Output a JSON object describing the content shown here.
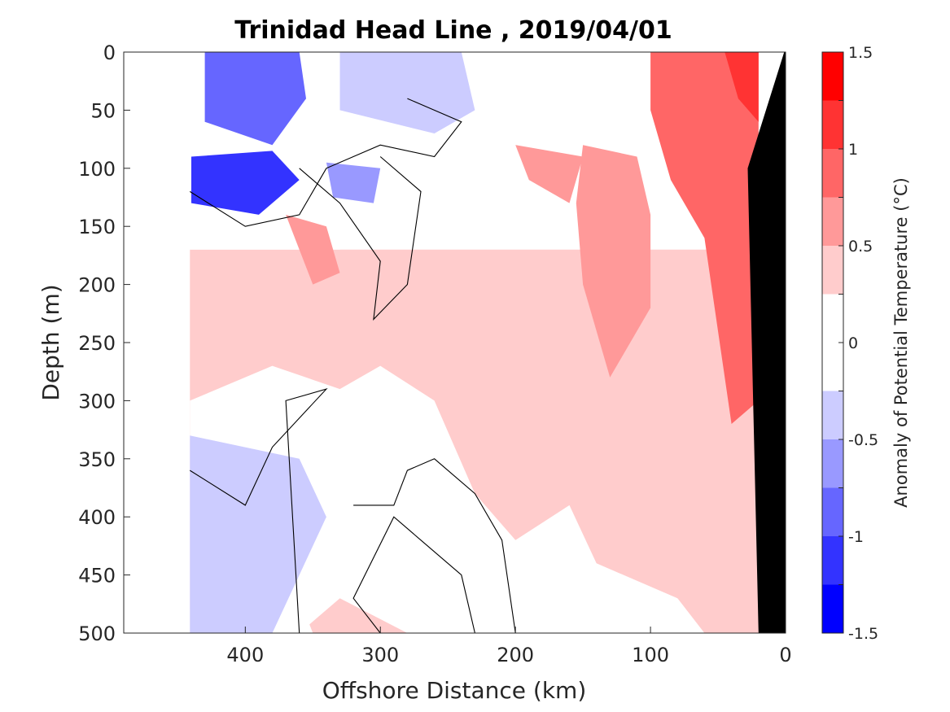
{
  "chart_data": {
    "type": "contourf",
    "title": "Trinidad Head Line , 2019/04/01",
    "xlabel": "Offshore Distance (km)",
    "ylabel": "Depth (m)",
    "x_reversed": true,
    "y_reversed": true,
    "xlim": [
      490,
      0
    ],
    "ylim": [
      0,
      500
    ],
    "xticks": [
      400,
      300,
      200,
      100,
      0
    ],
    "yticks": [
      0,
      50,
      100,
      150,
      200,
      250,
      300,
      350,
      400,
      450,
      500
    ],
    "data_extent": {
      "x_km": [
        441,
        20
      ],
      "depth_m": [
        0,
        500
      ]
    },
    "colorbar": {
      "label": "Anomaly of Potential Temperature (°C)",
      "ticks": [
        "1.5",
        "1",
        "0.5",
        "0",
        "-0.5",
        "-1",
        "-1.5"
      ],
      "range": [
        -1.5,
        1.5
      ],
      "levels": [
        {
          "min": 1.25,
          "max": 1.5,
          "color": "#ff0000"
        },
        {
          "min": 1.0,
          "max": 1.25,
          "color": "#ff3333"
        },
        {
          "min": 0.75,
          "max": 1.0,
          "color": "#ff6666"
        },
        {
          "min": 0.5,
          "max": 0.75,
          "color": "#ff9999"
        },
        {
          "min": 0.25,
          "max": 0.5,
          "color": "#ffcccc"
        },
        {
          "min": 0.0,
          "max": 0.25,
          "color": "#ffffff"
        },
        {
          "min": -0.25,
          "max": 0.0,
          "color": "#ffffff"
        },
        {
          "min": -0.5,
          "max": -0.25,
          "color": "#ccccff"
        },
        {
          "min": -0.75,
          "max": -0.5,
          "color": "#9999ff"
        },
        {
          "min": -1.0,
          "max": -0.75,
          "color": "#6666ff"
        },
        {
          "min": -1.25,
          "max": -1.0,
          "color": "#3333ff"
        },
        {
          "min": -1.5,
          "max": -1.25,
          "color": "#0000ff"
        }
      ]
    },
    "regions": [
      {
        "name": "warm-core-nearshore",
        "anomaly": 0.875,
        "color": "#ff6666",
        "points": [
          [
            100,
            0
          ],
          [
            20,
            0
          ],
          [
            20,
            300
          ],
          [
            40,
            320
          ],
          [
            50,
            240
          ],
          [
            60,
            160
          ],
          [
            85,
            110
          ],
          [
            100,
            50
          ]
        ]
      },
      {
        "name": "warm-nearshore-max",
        "anomaly": 1.125,
        "color": "#ff3333",
        "points": [
          [
            45,
            0
          ],
          [
            20,
            0
          ],
          [
            20,
            60
          ],
          [
            35,
            40
          ]
        ]
      },
      {
        "name": "warm-moderate-150km",
        "anomaly": 0.625,
        "color": "#ff9999",
        "points": [
          [
            150,
            80
          ],
          [
            110,
            90
          ],
          [
            100,
            140
          ],
          [
            100,
            220
          ],
          [
            130,
            280
          ],
          [
            150,
            200
          ],
          [
            155,
            130
          ]
        ]
      },
      {
        "name": "warm-moderate-350km",
        "anomaly": 0.625,
        "color": "#ff9999",
        "points": [
          [
            370,
            140
          ],
          [
            340,
            150
          ],
          [
            330,
            190
          ],
          [
            350,
            200
          ],
          [
            360,
            170
          ]
        ]
      },
      {
        "name": "warm-moderate-180km",
        "anomaly": 0.625,
        "color": "#ff9999",
        "points": [
          [
            200,
            80
          ],
          [
            150,
            90
          ],
          [
            160,
            130
          ],
          [
            190,
            110
          ]
        ]
      },
      {
        "name": "cold-core-upper",
        "anomaly": -0.875,
        "color": "#6666ff",
        "points": [
          [
            430,
            0
          ],
          [
            360,
            0
          ],
          [
            355,
            40
          ],
          [
            380,
            80
          ],
          [
            430,
            60
          ]
        ]
      },
      {
        "name": "cold-core-100m",
        "anomaly": -1.125,
        "color": "#3333ff",
        "points": [
          [
            440,
            90
          ],
          [
            380,
            85
          ],
          [
            360,
            110
          ],
          [
            390,
            140
          ],
          [
            440,
            130
          ]
        ]
      },
      {
        "name": "cold-weak-100m",
        "anomaly": -0.625,
        "color": "#9999ff",
        "points": [
          [
            340,
            95
          ],
          [
            300,
            100
          ],
          [
            305,
            130
          ],
          [
            335,
            125
          ]
        ]
      },
      {
        "name": "cold-weak-upper-right",
        "anomaly": -0.375,
        "color": "#ccccff",
        "points": [
          [
            330,
            0
          ],
          [
            240,
            0
          ],
          [
            230,
            50
          ],
          [
            260,
            70
          ],
          [
            330,
            50
          ]
        ]
      },
      {
        "name": "cold-weak-deep",
        "anomaly": -0.375,
        "color": "#ccccff",
        "points": [
          [
            441,
            330
          ],
          [
            360,
            350
          ],
          [
            340,
            400
          ],
          [
            380,
            500
          ],
          [
            441,
            500
          ]
        ]
      }
    ],
    "zero_contours": [
      {
        "name": "zero-contour-upper",
        "points": [
          [
            441,
            120
          ],
          [
            400,
            150
          ],
          [
            360,
            140
          ],
          [
            340,
            100
          ],
          [
            300,
            80
          ],
          [
            260,
            90
          ],
          [
            240,
            60
          ],
          [
            280,
            40
          ]
        ]
      },
      {
        "name": "zero-contour-tongue",
        "points": [
          [
            360,
            100
          ],
          [
            330,
            130
          ],
          [
            300,
            180
          ],
          [
            305,
            230
          ],
          [
            280,
            200
          ],
          [
            270,
            120
          ],
          [
            300,
            90
          ]
        ]
      },
      {
        "name": "zero-contour-deep-left",
        "points": [
          [
            441,
            360
          ],
          [
            400,
            390
          ],
          [
            380,
            340
          ],
          [
            340,
            290
          ],
          [
            370,
            300
          ],
          [
            360,
            500
          ]
        ]
      },
      {
        "name": "zero-contour-deep-mid",
        "points": [
          [
            230,
            500
          ],
          [
            240,
            450
          ],
          [
            270,
            420
          ],
          [
            290,
            400
          ],
          [
            320,
            470
          ],
          [
            300,
            500
          ]
        ]
      },
      {
        "name": "zero-contour-deep-right",
        "points": [
          [
            200,
            500
          ],
          [
            210,
            420
          ],
          [
            230,
            380
          ],
          [
            260,
            350
          ],
          [
            280,
            360
          ],
          [
            290,
            390
          ],
          [
            320,
            390
          ]
        ]
      }
    ],
    "land": {
      "name": "shelf-bathymetry",
      "color": "#000000",
      "points": [
        [
          1,
          0
        ],
        [
          0,
          0
        ],
        [
          0,
          500
        ],
        [
          20,
          500
        ],
        [
          25,
          250
        ],
        [
          28,
          100
        ]
      ]
    }
  }
}
